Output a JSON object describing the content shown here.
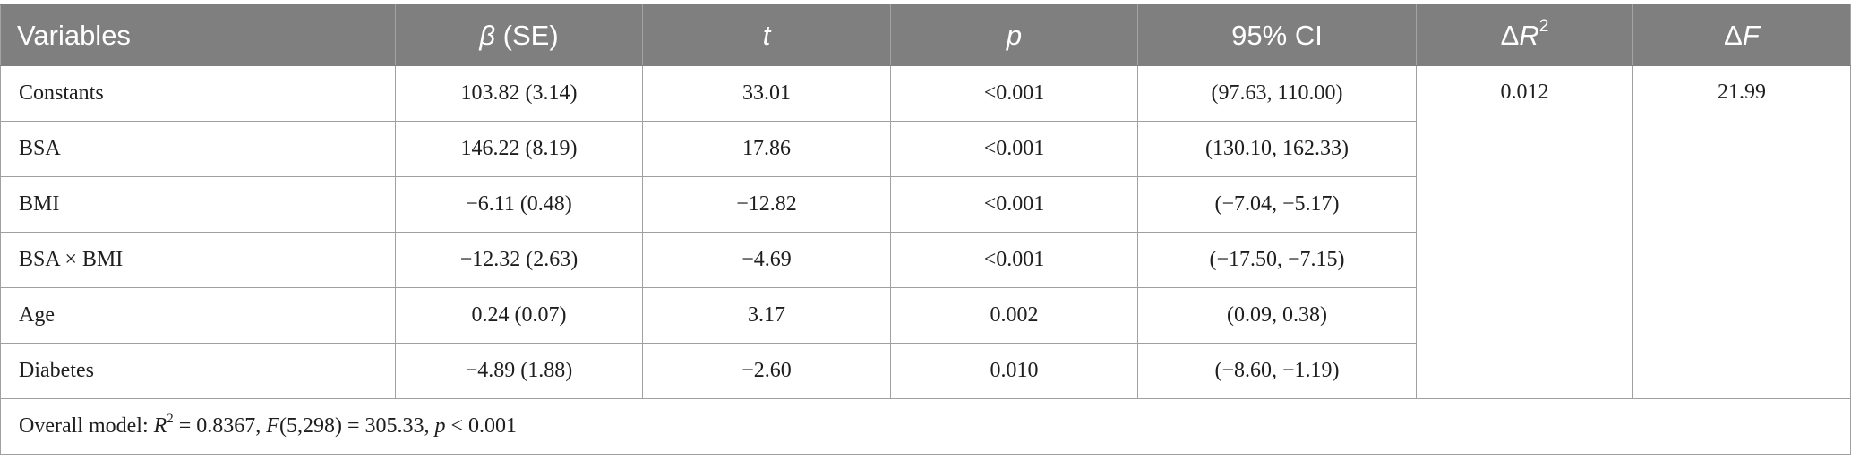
{
  "headers": {
    "variables": "Variables",
    "beta_symbol": "β",
    "beta_rest": " (SE)",
    "t": "t",
    "p": "p",
    "ci": "95% CI",
    "delta_r2_prefix": "Δ",
    "delta_r2_var": "R",
    "delta_r2_sup": "2",
    "delta_f_prefix": "Δ",
    "delta_f_var": "F"
  },
  "rows": [
    {
      "variable": "Constants",
      "beta": "103.82 (3.14)",
      "t": "33.01",
      "p": "<0.001",
      "ci": "(97.63, 110.00)"
    },
    {
      "variable": "BSA",
      "beta": "146.22 (8.19)",
      "t": "17.86",
      "p": "<0.001",
      "ci": "(130.10, 162.33)"
    },
    {
      "variable": "BMI",
      "beta": "−6.11 (0.48)",
      "t": "−12.82",
      "p": "<0.001",
      "ci": "(−7.04, −5.17)"
    },
    {
      "variable": "BSA × BMI",
      "beta": "−12.32 (2.63)",
      "t": "−4.69",
      "p": "<0.001",
      "ci": "(−17.50, −7.15)"
    },
    {
      "variable": "Age",
      "beta": "0.24 (0.07)",
      "t": "3.17",
      "p": "0.002",
      "ci": "(0.09, 0.38)"
    },
    {
      "variable": "Diabetes",
      "beta": "−4.89 (1.88)",
      "t": "−2.60",
      "p": "0.010",
      "ci": "(−8.60, −1.19)"
    }
  ],
  "delta_r2_value": "0.012",
  "delta_f_value": "21.99",
  "footer": {
    "prefix": "Overall model: ",
    "r": "R",
    "r_sup": "2",
    "r_val": " = 0.8367, ",
    "f": "F",
    "f_val": "(5,298) = 305.33, ",
    "p": "p",
    "p_val": " < 0.001"
  }
}
